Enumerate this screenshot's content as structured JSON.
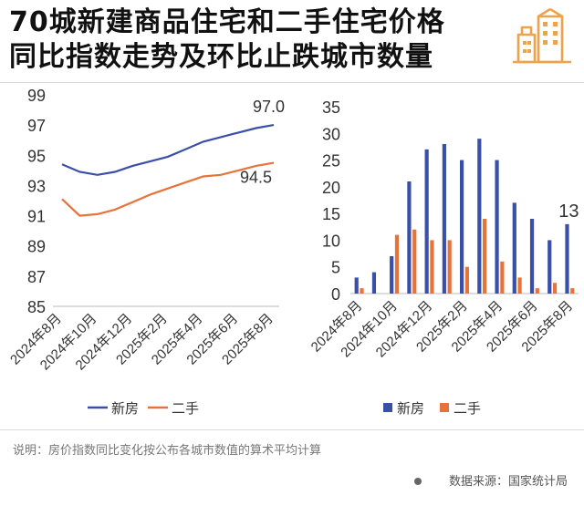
{
  "title": {
    "line1": "70城新建商品住宅和二手住宅价格",
    "line2": "同比指数走势及环比止跌城市数量"
  },
  "logo": {
    "icon": "building-logo-icon",
    "color": "#f0a24b"
  },
  "note": "说明：房价指数同比变化按公布各城市数值的算术平均计算",
  "source": "数据来源：国家统计局",
  "colors": {
    "new": "#3a4fa8",
    "second": "#e8733a"
  },
  "chart_data": [
    {
      "type": "line",
      "title": "",
      "x": [
        "2024年8月",
        "2024年9月",
        "2024年10月",
        "2024年11月",
        "2024年12月",
        "2025年1月",
        "2025年2月",
        "2025年3月",
        "2025年4月",
        "2025年5月",
        "2025年6月",
        "2025年7月",
        "2025年8月"
      ],
      "xtick_labels": [
        "2024年8月",
        "2024年10月",
        "2024年12月",
        "2025年2月",
        "2025年4月",
        "2025年6月",
        "2025年8月"
      ],
      "series": [
        {
          "name": "新房",
          "values": [
            94.4,
            93.9,
            93.7,
            93.9,
            94.3,
            94.6,
            94.9,
            95.4,
            95.9,
            96.2,
            96.5,
            96.8,
            97.0
          ]
        },
        {
          "name": "二手",
          "values": [
            92.1,
            91.0,
            91.1,
            91.4,
            91.9,
            92.4,
            92.8,
            93.2,
            93.6,
            93.7,
            94.0,
            94.3,
            94.5
          ]
        }
      ],
      "annotations": [
        "97.0",
        "94.5"
      ],
      "ylim": [
        85,
        99
      ],
      "yticks": [
        "85",
        "87",
        "89",
        "91",
        "93",
        "95",
        "97",
        "99"
      ],
      "legend": "bottom"
    },
    {
      "type": "bar",
      "title": "",
      "categories": [
        "2024年8月",
        "2024年9月",
        "2024年10月",
        "2024年11月",
        "2024年12月",
        "2025年1月",
        "2025年2月",
        "2025年3月",
        "2025年4月",
        "2025年5月",
        "2025年6月",
        "2025年7月",
        "2025年8月"
      ],
      "xtick_labels": [
        "2024年8月",
        "2024年10月",
        "2024年12月",
        "2025年2月",
        "2025年4月",
        "2025年6月",
        "2025年8月"
      ],
      "series": [
        {
          "name": "新房",
          "values": [
            3,
            4,
            7,
            21,
            27,
            28,
            25,
            29,
            25,
            17,
            14,
            10,
            13
          ]
        },
        {
          "name": "二手",
          "values": [
            1,
            0,
            11,
            12,
            10,
            10,
            5,
            14,
            6,
            3,
            1,
            2,
            1
          ]
        }
      ],
      "annotations": [
        "13"
      ],
      "ylim": [
        0,
        35
      ],
      "yticks": [
        "0",
        "5",
        "10",
        "15",
        "20",
        "25",
        "30",
        "35"
      ],
      "legend": "bottom"
    }
  ]
}
